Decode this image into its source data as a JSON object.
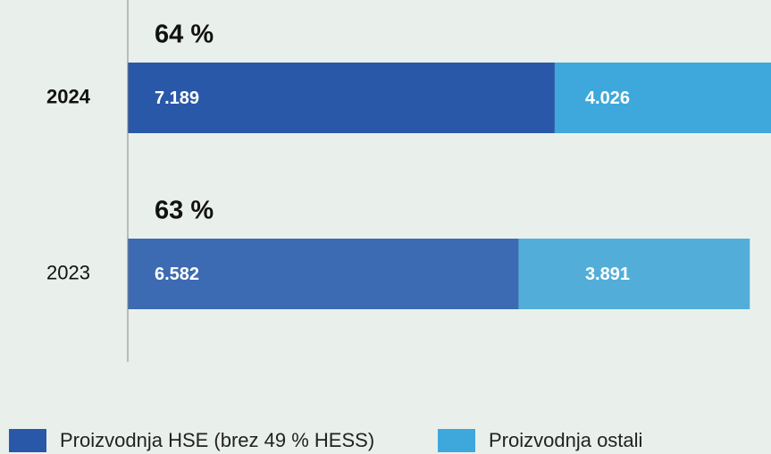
{
  "chart_data": {
    "type": "stacked_barh",
    "categories": [
      "2024",
      "2023"
    ],
    "annotations": [
      "64 %",
      "63 %"
    ],
    "series": [
      {
        "name": "Proizvodnja HSE (brez 49 % HESS)",
        "color": "#2a58a8",
        "colors": [
          "#2a58a8",
          "#3d6bb3"
        ],
        "values": [
          7189,
          6582
        ],
        "value_labels": [
          "7.189",
          "6.582"
        ]
      },
      {
        "name": "Proizvodnja ostali",
        "color": "#3ea8dc",
        "colors": [
          "#3ea8dc",
          "#52aed9"
        ],
        "values": [
          4026,
          3891
        ],
        "value_labels": [
          "4.026",
          "3.891"
        ]
      }
    ],
    "xlim": [
      0,
      10830
    ],
    "legend": "bottom"
  }
}
